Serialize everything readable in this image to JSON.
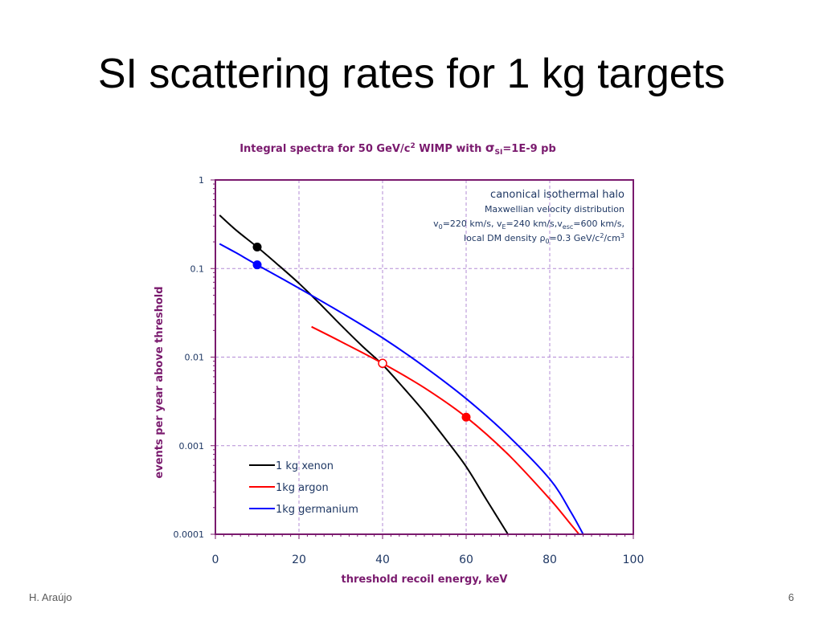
{
  "slide": {
    "title": "SI scattering rates for 1 kg targets",
    "footer_author": "H. Araújo",
    "page_number": "6"
  },
  "chart_data": {
    "type": "line",
    "title_main": "Integral spectra for 50 GeV/c",
    "title_sup": "2",
    "title_mid": " WIMP with ",
    "title_sigma": "σ",
    "title_sigma_sub": "SI",
    "title_end": "=1E-9 pb",
    "xlabel": "threshold recoil energy, keV",
    "ylabel": "events per year above threshold",
    "x_scale": "linear",
    "y_scale": "log",
    "xlim": [
      0,
      100
    ],
    "ylim": [
      0.0001,
      1
    ],
    "x_ticks": [
      "0",
      "20",
      "40",
      "60",
      "80",
      "100"
    ],
    "y_ticks": [
      "1",
      "0.1",
      "0.01",
      "0.001",
      "0.0001"
    ],
    "grid": true,
    "legend_position": "bottom-left",
    "annotations": {
      "line1": "canonical isothermal halo",
      "line2": "Maxwellian velocity distribution",
      "line3": "v0=220 km/s, vE=240  km/s,vesc=600 km/s,",
      "line4": "local DM density ρ0=0.3 GeV/c²/cm³"
    },
    "colors": {
      "title": "#7a1a6e",
      "grid": "#b38bd6",
      "frame": "#7a1a6e",
      "tick_text": "#1f3864"
    },
    "series": [
      {
        "name": "1 kg xenon",
        "color": "#000000",
        "x": [
          1,
          5,
          10,
          15,
          20,
          25,
          30,
          35,
          40,
          45,
          50,
          55,
          60,
          65,
          70
        ],
        "y": [
          0.4,
          0.27,
          0.175,
          0.11,
          0.068,
          0.04,
          0.023,
          0.0135,
          0.0082,
          0.0045,
          0.0024,
          0.0012,
          0.00058,
          0.00024,
          0.0001
        ]
      },
      {
        "name": "1kg argon",
        "color": "#ff0000",
        "x": [
          23,
          30,
          40,
          50,
          60,
          70,
          80,
          85,
          87
        ],
        "y": [
          0.022,
          0.015,
          0.0085,
          0.0045,
          0.0021,
          0.0008,
          0.00025,
          0.00013,
          0.0001
        ]
      },
      {
        "name": "1kg germanium",
        "color": "#0000ff",
        "x": [
          1,
          5,
          10,
          20,
          30,
          40,
          50,
          60,
          70,
          80,
          85,
          88
        ],
        "y": [
          0.19,
          0.15,
          0.11,
          0.06,
          0.032,
          0.0165,
          0.0078,
          0.0034,
          0.0013,
          0.00042,
          0.00018,
          0.0001
        ]
      }
    ],
    "markers": [
      {
        "series": "1 kg xenon",
        "x": 10,
        "y": 0.175,
        "color": "#000000",
        "filled": true
      },
      {
        "series": "1kg germanium",
        "x": 10,
        "y": 0.11,
        "color": "#0000ff",
        "filled": true
      },
      {
        "series": "1kg argon",
        "x": 60,
        "y": 0.0021,
        "color": "#ff0000",
        "filled": true
      },
      {
        "series": "crossing",
        "x": 40,
        "y": 0.0085,
        "color": "#ff0000",
        "filled": false
      }
    ]
  }
}
